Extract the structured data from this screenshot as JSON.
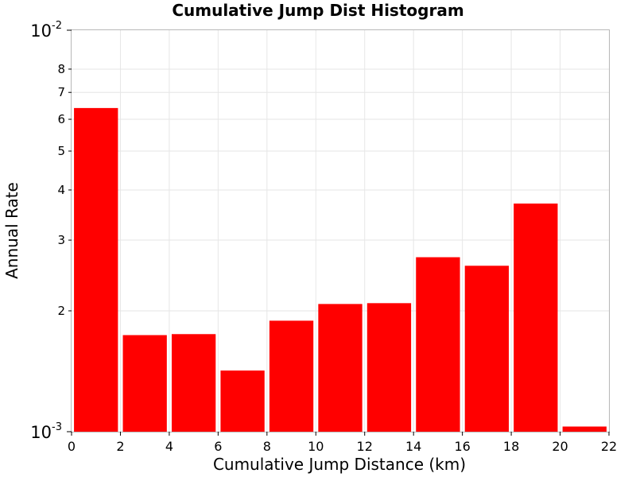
{
  "chart_data": {
    "type": "bar",
    "title": "Cumulative Jump Dist Histogram",
    "xlabel": "Cumulative Jump Distance (km)",
    "ylabel": "Annual Rate",
    "x_ticks": [
      0,
      2,
      4,
      6,
      8,
      10,
      12,
      14,
      16,
      18,
      20,
      22
    ],
    "xlim": [
      0,
      22
    ],
    "y_scale": "log",
    "ylim": [
      0.001,
      0.01
    ],
    "y_ticks_major": [
      {
        "value": 0.001,
        "base": "10",
        "exponent": "-3"
      },
      {
        "value": 0.01,
        "base": "10",
        "exponent": "-2"
      }
    ],
    "y_ticks_minor": [
      {
        "value": 0.002,
        "label": "2"
      },
      {
        "value": 0.003,
        "label": "3"
      },
      {
        "value": 0.004,
        "label": "4"
      },
      {
        "value": 0.005,
        "label": "5"
      },
      {
        "value": 0.006,
        "label": "6"
      },
      {
        "value": 0.007,
        "label": "7"
      },
      {
        "value": 0.008,
        "label": "8"
      }
    ],
    "grid": true,
    "bar_color": "#ff0000",
    "bar_width": 1.8,
    "bars": [
      {
        "x": 1,
        "value": 0.0064
      },
      {
        "x": 3,
        "value": 0.00174
      },
      {
        "x": 5,
        "value": 0.00175
      },
      {
        "x": 7,
        "value": 0.00142
      },
      {
        "x": 9,
        "value": 0.00189
      },
      {
        "x": 11,
        "value": 0.00208
      },
      {
        "x": 13,
        "value": 0.00209
      },
      {
        "x": 15,
        "value": 0.00272
      },
      {
        "x": 17,
        "value": 0.00259
      },
      {
        "x": 19,
        "value": 0.0037
      },
      {
        "x": 21,
        "value": 0.00103
      }
    ]
  }
}
